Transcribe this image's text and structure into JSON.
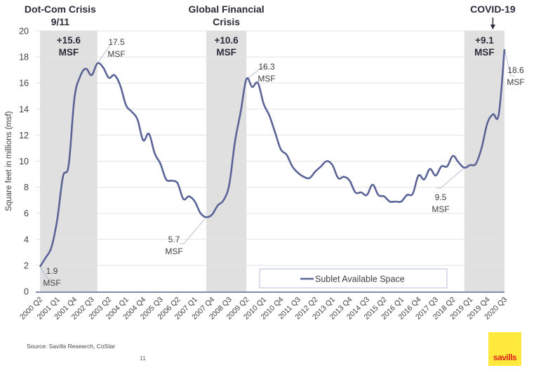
{
  "chart_data": {
    "type": "line",
    "title": "",
    "xlabel": "",
    "ylabel": "Square feet in millions (msf)",
    "ylim": [
      0,
      20
    ],
    "yticks": [
      0,
      2,
      4,
      6,
      8,
      10,
      12,
      14,
      16,
      18,
      20
    ],
    "grid": true,
    "legend_position": "bottom-right",
    "x": [
      "2000 Q2",
      "2000 Q3",
      "2000 Q4",
      "2001 Q1",
      "2001 Q2",
      "2001 Q3",
      "2001 Q4",
      "2002 Q1",
      "2002 Q2",
      "2002 Q3",
      "2002 Q4",
      "2003 Q1",
      "2003 Q2",
      "2003 Q3",
      "2003 Q4",
      "2004 Q1",
      "2004 Q2",
      "2004 Q3",
      "2004 Q4",
      "2005 Q1",
      "2005 Q2",
      "2005 Q3",
      "2005 Q4",
      "2006 Q1",
      "2006 Q2",
      "2006 Q3",
      "2006 Q4",
      "2007 Q1",
      "2007 Q2",
      "2007 Q3",
      "2007 Q4",
      "2008 Q1",
      "2008 Q2",
      "2008 Q3",
      "2008 Q4",
      "2009 Q1",
      "2009 Q2",
      "2009 Q3",
      "2009 Q4",
      "2010 Q1",
      "2010 Q2",
      "2010 Q3",
      "2010 Q4",
      "2011 Q1",
      "2011 Q2",
      "2011 Q3",
      "2011 Q4",
      "2012 Q1",
      "2012 Q2",
      "2012 Q3",
      "2012 Q4",
      "2013 Q1",
      "2013 Q2",
      "2013 Q3",
      "2013 Q4",
      "2014 Q1",
      "2014 Q2",
      "2014 Q3",
      "2014 Q4",
      "2015 Q1",
      "2015 Q2",
      "2015 Q3",
      "2015 Q4",
      "2016 Q1",
      "2016 Q2",
      "2016 Q3",
      "2016 Q4",
      "2017 Q1",
      "2017 Q2",
      "2017 Q3",
      "2017 Q4",
      "2018 Q1",
      "2018 Q2",
      "2018 Q3",
      "2018 Q4",
      "2019 Q1",
      "2019 Q2",
      "2019 Q3",
      "2019 Q4",
      "2020 Q1",
      "2020 Q2",
      "2020 Q3"
    ],
    "xtick_labels": [
      "2000 Q2",
      "2001 Q1",
      "2001 Q4",
      "2002 Q3",
      "2003 Q2",
      "2004 Q1",
      "2004 Q4",
      "2005 Q3",
      "2006 Q2",
      "2007 Q1",
      "2007 Q4",
      "2008 Q3",
      "2009 Q2",
      "2010 Q1",
      "2010 Q4",
      "2011 Q3",
      "2012 Q2",
      "2013 Q1",
      "2013 Q4",
      "2014 Q3",
      "2015 Q2",
      "2016 Q1",
      "2016 Q4",
      "2017 Q3",
      "2018 Q2",
      "2019 Q1",
      "2019 Q4",
      "2020 Q3"
    ],
    "series": [
      {
        "name": "Sublet Available Space",
        "color": "#5b6496",
        "values": [
          1.9,
          2.6,
          3.4,
          5.5,
          8.8,
          9.7,
          14.8,
          16.5,
          17.1,
          16.6,
          17.5,
          17.2,
          16.4,
          16.6,
          15.8,
          14.3,
          13.8,
          13.2,
          11.6,
          12.1,
          10.6,
          9.8,
          8.6,
          8.5,
          8.3,
          7.1,
          7.3,
          6.9,
          6.0,
          5.7,
          5.9,
          6.6,
          7.0,
          8.2,
          11.5,
          13.8,
          16.3,
          15.7,
          16.0,
          14.4,
          13.5,
          12.2,
          10.9,
          10.5,
          9.6,
          9.1,
          8.8,
          8.7,
          9.2,
          9.6,
          10.0,
          9.7,
          8.7,
          8.8,
          8.5,
          7.6,
          7.6,
          7.4,
          8.2,
          7.4,
          7.3,
          6.9,
          6.9,
          6.9,
          7.4,
          7.5,
          8.9,
          8.6,
          9.4,
          8.9,
          9.6,
          9.6,
          10.4,
          9.9,
          9.5,
          9.7,
          9.8,
          11.0,
          12.9,
          13.6,
          13.6,
          18.6
        ]
      }
    ],
    "shaded_periods": [
      {
        "label": "Dot-Com Crisis 9/11",
        "label_lines": [
          "Dot-Com Crisis",
          "9/11"
        ],
        "from": "2000 Q2",
        "to": "2002 Q4",
        "change_lines": [
          "+15.6",
          "MSF"
        ]
      },
      {
        "label": "Global Financial Crisis",
        "label_lines": [
          "Global Financial",
          "Crisis"
        ],
        "from": "2007 Q3",
        "to": "2009 Q2",
        "change_lines": [
          "+10.6",
          "MSF"
        ]
      },
      {
        "label": "COVID-19",
        "label_lines": [
          "COVID-19"
        ],
        "from": "2018 Q4",
        "to": "2020 Q3",
        "change_lines": [
          "+9.1",
          "MSF"
        ]
      }
    ],
    "annotations": [
      {
        "at": "2000 Q2",
        "value": 1.9,
        "lines": [
          "1.9",
          "MSF"
        ]
      },
      {
        "at": "2002 Q4",
        "value": 17.5,
        "lines": [
          "17.5",
          "MSF"
        ]
      },
      {
        "at": "2007 Q3",
        "value": 5.7,
        "lines": [
          "5.7",
          "MSF"
        ]
      },
      {
        "at": "2009 Q2",
        "value": 16.3,
        "lines": [
          "16.3",
          "MSF"
        ]
      },
      {
        "at": "2018 Q4",
        "value": 9.5,
        "lines": [
          "9.5",
          "MSF"
        ]
      },
      {
        "at": "2020 Q3",
        "value": 18.6,
        "lines": [
          "18.6",
          "MSF"
        ]
      }
    ],
    "colors": {
      "shade": "#e0e0e0",
      "grid": "#e3e3e3",
      "axis": "#5b6496",
      "text": "#404040",
      "title": "#2b2b3a"
    }
  },
  "footer": {
    "source": "Source: Savills Research, CoStar",
    "page_number": "11",
    "logo_text": "savills"
  }
}
